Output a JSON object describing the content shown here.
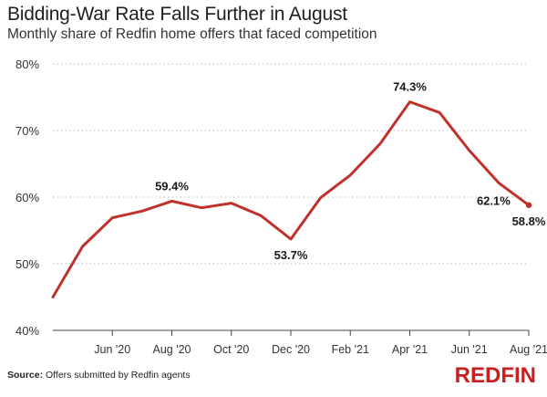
{
  "header": {
    "title": "Bidding-War Rate Falls Further in August",
    "subtitle": "Monthly share of Redfin home offers that faced competition"
  },
  "footer": {
    "source_label": "Source:",
    "source_text": "Offers submitted by Redfin agents",
    "brand": "REDFIN"
  },
  "colors": {
    "line": "#c0312b",
    "brand": "#c82021",
    "grid": "#b8b8b8",
    "axis": "#444444"
  },
  "chart_data": {
    "type": "line",
    "title": "Bidding-War Rate Falls Further in August",
    "subtitle": "Monthly share of Redfin home offers that faced competition",
    "xlabel": "",
    "ylabel": "",
    "ylim": [
      40,
      80
    ],
    "yticks": [
      40,
      50,
      60,
      70,
      80
    ],
    "ytick_labels": [
      "40%",
      "50%",
      "60%",
      "70%",
      "80%"
    ],
    "grid": true,
    "x": [
      "Apr '20",
      "May '20",
      "Jun '20",
      "Jul '20",
      "Aug '20",
      "Sep '20",
      "Oct '20",
      "Nov '20",
      "Dec '20",
      "Jan '21",
      "Feb '21",
      "Mar '21",
      "Apr '21",
      "May '21",
      "Jun '21",
      "Jul '21",
      "Aug '21"
    ],
    "xtick_labels": [
      {
        "index": 2,
        "label": "Jun '20"
      },
      {
        "index": 4,
        "label": "Aug '20"
      },
      {
        "index": 6,
        "label": "Oct '20"
      },
      {
        "index": 8,
        "label": "Dec '20"
      },
      {
        "index": 10,
        "label": "Feb '21"
      },
      {
        "index": 12,
        "label": "Apr '21"
      },
      {
        "index": 14,
        "label": "Jun '21"
      },
      {
        "index": 16,
        "label": "Aug '21"
      }
    ],
    "series": [
      {
        "name": "Share of offers facing competition",
        "values": [
          45.0,
          52.6,
          56.9,
          57.9,
          59.4,
          58.4,
          59.1,
          57.2,
          53.7,
          59.9,
          63.3,
          68.0,
          74.3,
          72.7,
          67.0,
          62.1,
          58.8
        ]
      }
    ],
    "annotations": [
      {
        "index": 4,
        "label": "59.4%",
        "position": "above"
      },
      {
        "index": 8,
        "label": "53.7%",
        "position": "below"
      },
      {
        "index": 12,
        "label": "74.3%",
        "position": "above"
      },
      {
        "index": 15,
        "label": "62.1%",
        "position": "below-left"
      },
      {
        "index": 16,
        "label": "58.8%",
        "position": "below"
      }
    ]
  }
}
